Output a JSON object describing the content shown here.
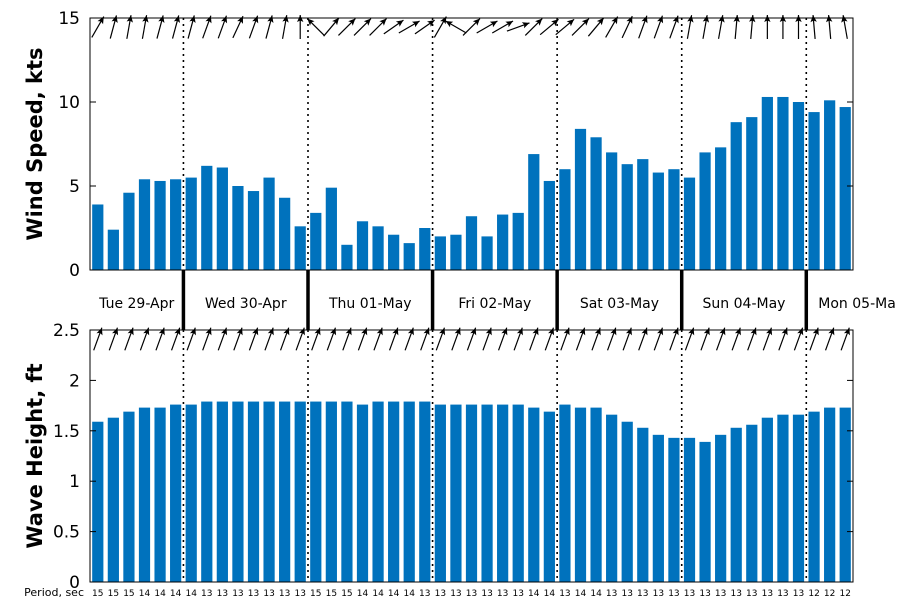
{
  "chart_data": [
    {
      "type": "bar",
      "ylabel": "Wind Speed, kts",
      "ylim": [
        0,
        15
      ],
      "yticks": [
        "0",
        "5",
        "10",
        "15"
      ],
      "bar_color": "#0072bd",
      "values": [
        3.9,
        2.4,
        4.6,
        5.4,
        5.3,
        5.4,
        5.5,
        6.2,
        6.1,
        5.0,
        4.7,
        5.5,
        4.3,
        2.6,
        3.4,
        4.9,
        1.5,
        2.9,
        2.6,
        2.1,
        1.6,
        2.5,
        2.0,
        2.1,
        3.2,
        2.0,
        3.3,
        3.4,
        6.9,
        5.3,
        6.0,
        8.4,
        7.9,
        7.0,
        6.3,
        6.6,
        5.8,
        6.0,
        5.5,
        7.0,
        7.3,
        8.8,
        9.1,
        10.3,
        10.3,
        10.0,
        9.4,
        10.1,
        9.7
      ],
      "directions_deg": [
        60,
        75,
        80,
        80,
        75,
        75,
        75,
        70,
        70,
        65,
        70,
        75,
        80,
        90,
        135,
        50,
        45,
        45,
        45,
        35,
        30,
        35,
        60,
        150,
        45,
        30,
        30,
        20,
        45,
        40,
        40,
        45,
        50,
        60,
        65,
        70,
        70,
        70,
        80,
        80,
        80,
        85,
        85,
        90,
        90,
        90,
        95,
        95,
        100
      ]
    },
    {
      "type": "bar",
      "ylabel": "Wave Height, ft",
      "ylim": [
        0,
        2.5
      ],
      "yticks": [
        "0",
        "0.5",
        "1",
        "1.5",
        "2",
        "2.5"
      ],
      "bar_color": "#0072bd",
      "values": [
        1.59,
        1.63,
        1.69,
        1.73,
        1.73,
        1.76,
        1.76,
        1.79,
        1.79,
        1.79,
        1.79,
        1.79,
        1.79,
        1.79,
        1.79,
        1.79,
        1.79,
        1.76,
        1.79,
        1.79,
        1.79,
        1.79,
        1.76,
        1.76,
        1.76,
        1.76,
        1.76,
        1.76,
        1.73,
        1.69,
        1.76,
        1.73,
        1.73,
        1.66,
        1.59,
        1.53,
        1.46,
        1.43,
        1.43,
        1.39,
        1.46,
        1.53,
        1.56,
        1.63,
        1.66,
        1.66,
        1.69,
        1.73,
        1.73
      ],
      "directions_deg": [
        70,
        70,
        70,
        70,
        70,
        70,
        70,
        70,
        70,
        70,
        70,
        70,
        70,
        70,
        70,
        70,
        70,
        70,
        70,
        70,
        70,
        70,
        70,
        70,
        70,
        70,
        70,
        70,
        70,
        70,
        70,
        70,
        70,
        70,
        70,
        70,
        70,
        70,
        70,
        70,
        70,
        70,
        70,
        70,
        70,
        70,
        70,
        70,
        70
      ]
    }
  ],
  "days": [
    "Tue 29-Apr",
    "Wed 30-Apr",
    "Thu 01-May",
    "Fri 02-May",
    "Sat 03-May",
    "Sun 04-May",
    "Mon 05-Ma"
  ],
  "day_boundaries": [
    6,
    14,
    22,
    30,
    38,
    46
  ],
  "period_label": "Period, sec",
  "periods": [
    "15",
    "15",
    "15",
    "14",
    "14",
    "14",
    "14",
    "13",
    "13",
    "13",
    "13",
    "13",
    "13",
    "13",
    "15",
    "15",
    "15",
    "14",
    "14",
    "14",
    "14",
    "13",
    "13",
    "13",
    "13",
    "13",
    "13",
    "13",
    "14",
    "14",
    "13",
    "14",
    "14",
    "13",
    "13",
    "13",
    "13",
    "13",
    "13",
    "13",
    "13",
    "13",
    "13",
    "13",
    "13",
    "13",
    "12",
    "12",
    "12"
  ]
}
